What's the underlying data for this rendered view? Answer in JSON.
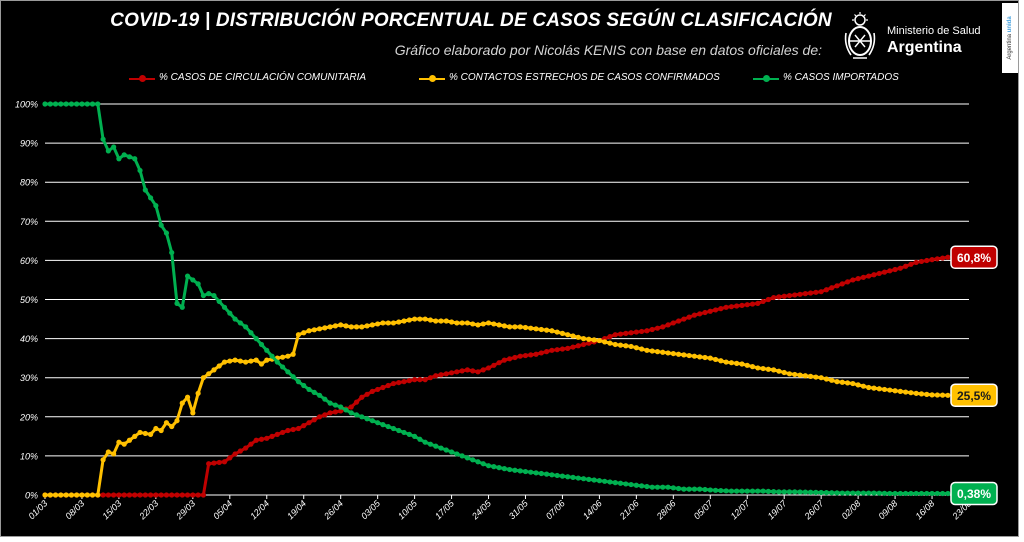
{
  "header": {
    "title": "COVID-19  |  DISTRIBUCIÓN PORCENTUAL DE CASOS SEGÚN CLASIFICACIÓN",
    "subtitle": "Gráfico elaborado por Nicolás KENIS con base en datos oficiales de:",
    "ministry": "Ministerio de Salud",
    "country": "Argentina",
    "side_tag_text": "Argentina",
    "side_tag_accent": "unida",
    "logo_icon": "argentina-coat-of-arms-icon"
  },
  "colors": {
    "background": "#000000",
    "grid": "#ffffff",
    "comunitaria": "#c00000",
    "contactos": "#ffc000",
    "importados": "#00b050"
  },
  "chart_data": {
    "type": "line",
    "ylim": [
      0,
      100
    ],
    "y_ticks": [
      "0%",
      "10%",
      "20%",
      "30%",
      "40%",
      "50%",
      "60%",
      "70%",
      "80%",
      "90%",
      "100%"
    ],
    "x_ticks": [
      "01/03",
      "08/03",
      "15/03",
      "22/03",
      "29/03",
      "05/04",
      "12/04",
      "19/04",
      "26/04",
      "03/05",
      "10/05",
      "17/05",
      "24/05",
      "31/05",
      "07/06",
      "14/06",
      "21/06",
      "28/06",
      "05/07",
      "12/07",
      "19/07",
      "26/07",
      "02/08",
      "09/08",
      "16/08",
      "23/08"
    ],
    "x_start": "01/03",
    "x_end": "19/08",
    "grid": true,
    "legend_position": "top",
    "series": [
      {
        "name": "% CASOS DE CIRCULACIÓN COMUNITARIA",
        "color": "#c00000",
        "final_label": "60,8%",
        "points": [
          [
            "01/03",
            0
          ],
          [
            "31/03",
            0
          ],
          [
            "01/04",
            8
          ],
          [
            "04/04",
            8.5
          ],
          [
            "06/04",
            10.5
          ],
          [
            "08/04",
            12
          ],
          [
            "10/04",
            14
          ],
          [
            "12/04",
            14.5
          ],
          [
            "14/04",
            15.5
          ],
          [
            "16/04",
            16.5
          ],
          [
            "18/04",
            17
          ],
          [
            "20/04",
            18.5
          ],
          [
            "22/04",
            20
          ],
          [
            "24/04",
            21
          ],
          [
            "26/04",
            21.5
          ],
          [
            "28/04",
            22.5
          ],
          [
            "30/04",
            25
          ],
          [
            "02/05",
            26.5
          ],
          [
            "04/05",
            27.5
          ],
          [
            "06/05",
            28.5
          ],
          [
            "08/05",
            29
          ],
          [
            "10/05",
            29.5
          ],
          [
            "12/05",
            29.5
          ],
          [
            "14/05",
            30.5
          ],
          [
            "16/05",
            31
          ],
          [
            "18/05",
            31.5
          ],
          [
            "20/05",
            32
          ],
          [
            "22/05",
            31.5
          ],
          [
            "24/05",
            32.5
          ],
          [
            "27/05",
            34.5
          ],
          [
            "30/05",
            35.5
          ],
          [
            "02/06",
            36
          ],
          [
            "05/06",
            37
          ],
          [
            "08/06",
            37.5
          ],
          [
            "11/06",
            38.5
          ],
          [
            "14/06",
            39.5
          ],
          [
            "17/06",
            41
          ],
          [
            "20/06",
            41.5
          ],
          [
            "23/06",
            42
          ],
          [
            "26/06",
            43
          ],
          [
            "29/06",
            44.5
          ],
          [
            "02/07",
            46
          ],
          [
            "05/07",
            47
          ],
          [
            "08/07",
            48
          ],
          [
            "11/07",
            48.5
          ],
          [
            "14/07",
            49
          ],
          [
            "17/07",
            50.5
          ],
          [
            "20/07",
            51
          ],
          [
            "23/07",
            51.5
          ],
          [
            "26/07",
            52
          ],
          [
            "29/07",
            53.5
          ],
          [
            "01/08",
            55
          ],
          [
            "04/08",
            56
          ],
          [
            "07/08",
            57
          ],
          [
            "10/08",
            58
          ],
          [
            "13/08",
            59.5
          ],
          [
            "16/08",
            60.2
          ],
          [
            "19/08",
            60.8
          ]
        ]
      },
      {
        "name": "% CONTACTOS ESTRECHOS DE CASOS CONFIRMADOS",
        "color": "#ffc000",
        "final_label": "25,5%",
        "points": [
          [
            "01/03",
            0
          ],
          [
            "11/03",
            0
          ],
          [
            "12/03",
            9
          ],
          [
            "13/03",
            11
          ],
          [
            "14/03",
            10.5
          ],
          [
            "15/03",
            13.5
          ],
          [
            "16/03",
            13
          ],
          [
            "17/03",
            14
          ],
          [
            "19/03",
            16
          ],
          [
            "21/03",
            15.5
          ],
          [
            "22/03",
            17
          ],
          [
            "23/03",
            16.5
          ],
          [
            "24/03",
            18.5
          ],
          [
            "25/03",
            17.5
          ],
          [
            "26/03",
            19
          ],
          [
            "27/03",
            23.5
          ],
          [
            "28/03",
            25
          ],
          [
            "29/03",
            21
          ],
          [
            "30/03",
            26
          ],
          [
            "31/03",
            30
          ],
          [
            "02/04",
            32
          ],
          [
            "04/04",
            34
          ],
          [
            "06/04",
            34.5
          ],
          [
            "08/04",
            34
          ],
          [
            "10/04",
            34.5
          ],
          [
            "11/04",
            33.5
          ],
          [
            "12/04",
            34.5
          ],
          [
            "14/04",
            35
          ],
          [
            "16/04",
            35.5
          ],
          [
            "17/04",
            36
          ],
          [
            "18/04",
            41
          ],
          [
            "20/04",
            42
          ],
          [
            "22/04",
            42.5
          ],
          [
            "24/04",
            43
          ],
          [
            "26/04",
            43.5
          ],
          [
            "28/04",
            43
          ],
          [
            "30/04",
            43
          ],
          [
            "02/05",
            43.5
          ],
          [
            "04/05",
            44
          ],
          [
            "06/05",
            44
          ],
          [
            "08/05",
            44.5
          ],
          [
            "10/05",
            45
          ],
          [
            "12/05",
            45
          ],
          [
            "14/05",
            44.5
          ],
          [
            "16/05",
            44.5
          ],
          [
            "18/05",
            44
          ],
          [
            "20/05",
            44
          ],
          [
            "22/05",
            43.5
          ],
          [
            "24/05",
            44
          ],
          [
            "26/05",
            43.5
          ],
          [
            "28/05",
            43
          ],
          [
            "30/05",
            43
          ],
          [
            "02/06",
            42.5
          ],
          [
            "05/06",
            42
          ],
          [
            "08/06",
            41
          ],
          [
            "11/06",
            40
          ],
          [
            "14/06",
            39.5
          ],
          [
            "17/06",
            38.5
          ],
          [
            "20/06",
            38
          ],
          [
            "23/06",
            37
          ],
          [
            "26/06",
            36.5
          ],
          [
            "29/06",
            36
          ],
          [
            "02/07",
            35.5
          ],
          [
            "05/07",
            35
          ],
          [
            "08/07",
            34
          ],
          [
            "11/07",
            33.5
          ],
          [
            "14/07",
            32.5
          ],
          [
            "17/07",
            32
          ],
          [
            "20/07",
            31
          ],
          [
            "23/07",
            30.5
          ],
          [
            "26/07",
            30
          ],
          [
            "29/07",
            29
          ],
          [
            "01/08",
            28.5
          ],
          [
            "04/08",
            27.5
          ],
          [
            "07/08",
            27
          ],
          [
            "10/08",
            26.5
          ],
          [
            "13/08",
            26
          ],
          [
            "16/08",
            25.6
          ],
          [
            "19/08",
            25.5
          ]
        ]
      },
      {
        "name": "% CASOS IMPORTADOS",
        "color": "#00b050",
        "final_label": "0,38%",
        "points": [
          [
            "01/03",
            100
          ],
          [
            "11/03",
            100
          ],
          [
            "12/03",
            91
          ],
          [
            "13/03",
            88
          ],
          [
            "14/03",
            89
          ],
          [
            "15/03",
            86
          ],
          [
            "16/03",
            87
          ],
          [
            "18/03",
            86
          ],
          [
            "19/03",
            83
          ],
          [
            "20/03",
            78
          ],
          [
            "21/03",
            76
          ],
          [
            "22/03",
            74
          ],
          [
            "23/03",
            69
          ],
          [
            "24/03",
            67
          ],
          [
            "25/03",
            62
          ],
          [
            "26/03",
            49
          ],
          [
            "27/03",
            48
          ],
          [
            "28/03",
            56
          ],
          [
            "29/03",
            55
          ],
          [
            "30/03",
            54
          ],
          [
            "31/03",
            51
          ],
          [
            "01/04",
            51.5
          ],
          [
            "02/04",
            51
          ],
          [
            "04/04",
            48
          ],
          [
            "06/04",
            45
          ],
          [
            "08/04",
            43
          ],
          [
            "10/04",
            40
          ],
          [
            "12/04",
            37
          ],
          [
            "14/04",
            34
          ],
          [
            "16/04",
            31.5
          ],
          [
            "18/04",
            29
          ],
          [
            "20/04",
            27
          ],
          [
            "22/04",
            25.5
          ],
          [
            "24/04",
            23.5
          ],
          [
            "26/04",
            22.5
          ],
          [
            "28/04",
            21
          ],
          [
            "30/04",
            20
          ],
          [
            "02/05",
            19
          ],
          [
            "04/05",
            18
          ],
          [
            "06/05",
            17
          ],
          [
            "08/05",
            16
          ],
          [
            "10/05",
            15
          ],
          [
            "12/05",
            13.5
          ],
          [
            "14/05",
            12.5
          ],
          [
            "16/05",
            11.5
          ],
          [
            "18/05",
            10.5
          ],
          [
            "20/05",
            9.5
          ],
          [
            "22/05",
            8.5
          ],
          [
            "24/05",
            7.5
          ],
          [
            "26/05",
            7
          ],
          [
            "28/05",
            6.5
          ],
          [
            "31/05",
            6
          ],
          [
            "03/06",
            5.5
          ],
          [
            "06/06",
            5
          ],
          [
            "09/06",
            4.5
          ],
          [
            "12/06",
            4
          ],
          [
            "15/06",
            3.5
          ],
          [
            "18/06",
            3
          ],
          [
            "21/06",
            2.5
          ],
          [
            "24/06",
            2
          ],
          [
            "27/06",
            2
          ],
          [
            "30/06",
            1.5
          ],
          [
            "03/07",
            1.5
          ],
          [
            "06/07",
            1.2
          ],
          [
            "09/07",
            1
          ],
          [
            "12/07",
            1
          ],
          [
            "15/07",
            1
          ],
          [
            "18/07",
            0.8
          ],
          [
            "21/07",
            0.8
          ],
          [
            "24/07",
            0.7
          ],
          [
            "27/07",
            0.6
          ],
          [
            "30/07",
            0.5
          ],
          [
            "02/08",
            0.5
          ],
          [
            "05/08",
            0.5
          ],
          [
            "08/08",
            0.4
          ],
          [
            "11/08",
            0.4
          ],
          [
            "14/08",
            0.4
          ],
          [
            "17/08",
            0.4
          ],
          [
            "19/08",
            0.38
          ]
        ]
      }
    ]
  }
}
